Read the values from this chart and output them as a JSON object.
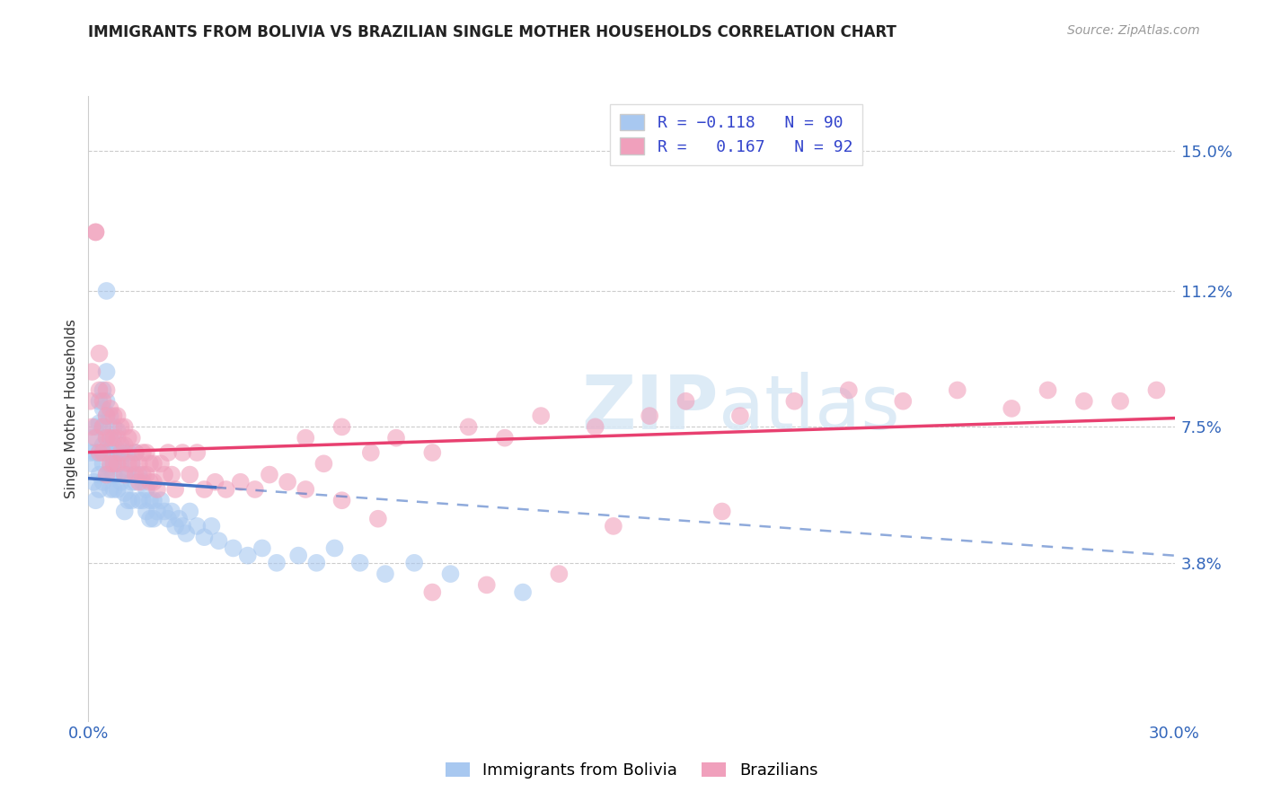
{
  "title": "IMMIGRANTS FROM BOLIVIA VS BRAZILIAN SINGLE MOTHER HOUSEHOLDS CORRELATION CHART",
  "source": "Source: ZipAtlas.com",
  "ylabel": "Single Mother Households",
  "ytick_labels": [
    "15.0%",
    "11.2%",
    "7.5%",
    "3.8%"
  ],
  "ytick_values": [
    0.15,
    0.112,
    0.075,
    0.038
  ],
  "xmin": 0.0,
  "xmax": 0.3,
  "ymin": -0.005,
  "ymax": 0.165,
  "bolivia_R": -0.118,
  "bolivia_N": 90,
  "brazil_R": 0.167,
  "brazil_N": 92,
  "bolivia_color": "#A8C8F0",
  "brazil_color": "#F0A0BC",
  "watermark": "ZIPatlas",
  "legend_label_1": "Immigrants from Bolivia",
  "legend_label_2": "Brazilians",
  "bolivia_x": [
    0.0005,
    0.001,
    0.001,
    0.0015,
    0.002,
    0.002,
    0.002,
    0.003,
    0.003,
    0.003,
    0.003,
    0.003,
    0.004,
    0.004,
    0.004,
    0.004,
    0.004,
    0.004,
    0.005,
    0.005,
    0.005,
    0.005,
    0.005,
    0.005,
    0.005,
    0.006,
    0.006,
    0.006,
    0.006,
    0.006,
    0.007,
    0.007,
    0.007,
    0.007,
    0.007,
    0.008,
    0.008,
    0.008,
    0.008,
    0.009,
    0.009,
    0.009,
    0.01,
    0.01,
    0.01,
    0.01,
    0.011,
    0.011,
    0.011,
    0.012,
    0.012,
    0.012,
    0.013,
    0.013,
    0.014,
    0.014,
    0.015,
    0.015,
    0.016,
    0.016,
    0.017,
    0.017,
    0.018,
    0.018,
    0.019,
    0.02,
    0.021,
    0.022,
    0.023,
    0.024,
    0.025,
    0.026,
    0.027,
    0.028,
    0.03,
    0.032,
    0.034,
    0.036,
    0.04,
    0.044,
    0.048,
    0.052,
    0.058,
    0.063,
    0.068,
    0.075,
    0.082,
    0.09,
    0.1,
    0.12
  ],
  "bolivia_y": [
    0.068,
    0.072,
    0.065,
    0.06,
    0.075,
    0.068,
    0.055,
    0.082,
    0.076,
    0.068,
    0.062,
    0.058,
    0.085,
    0.08,
    0.075,
    0.07,
    0.065,
    0.06,
    0.112,
    0.09,
    0.082,
    0.078,
    0.072,
    0.068,
    0.062,
    0.078,
    0.072,
    0.068,
    0.064,
    0.058,
    0.075,
    0.07,
    0.065,
    0.062,
    0.058,
    0.074,
    0.068,
    0.065,
    0.058,
    0.07,
    0.065,
    0.06,
    0.068,
    0.062,
    0.057,
    0.052,
    0.068,
    0.062,
    0.055,
    0.065,
    0.06,
    0.055,
    0.068,
    0.06,
    0.062,
    0.055,
    0.06,
    0.055,
    0.058,
    0.052,
    0.055,
    0.05,
    0.055,
    0.05,
    0.052,
    0.055,
    0.052,
    0.05,
    0.052,
    0.048,
    0.05,
    0.048,
    0.046,
    0.052,
    0.048,
    0.045,
    0.048,
    0.044,
    0.042,
    0.04,
    0.042,
    0.038,
    0.04,
    0.038,
    0.042,
    0.038,
    0.035,
    0.038,
    0.035,
    0.03
  ],
  "brazil_x": [
    0.0005,
    0.001,
    0.001,
    0.002,
    0.002,
    0.002,
    0.003,
    0.003,
    0.003,
    0.004,
    0.004,
    0.004,
    0.005,
    0.005,
    0.005,
    0.005,
    0.006,
    0.006,
    0.006,
    0.007,
    0.007,
    0.007,
    0.008,
    0.008,
    0.008,
    0.009,
    0.009,
    0.01,
    0.01,
    0.01,
    0.011,
    0.011,
    0.012,
    0.012,
    0.013,
    0.013,
    0.014,
    0.014,
    0.015,
    0.015,
    0.016,
    0.016,
    0.017,
    0.017,
    0.018,
    0.018,
    0.019,
    0.02,
    0.021,
    0.022,
    0.023,
    0.024,
    0.026,
    0.028,
    0.03,
    0.032,
    0.035,
    0.038,
    0.042,
    0.046,
    0.05,
    0.055,
    0.06,
    0.065,
    0.07,
    0.078,
    0.085,
    0.095,
    0.105,
    0.115,
    0.125,
    0.14,
    0.155,
    0.165,
    0.18,
    0.195,
    0.21,
    0.225,
    0.24,
    0.255,
    0.265,
    0.275,
    0.285,
    0.295,
    0.175,
    0.145,
    0.13,
    0.11,
    0.095,
    0.08,
    0.07,
    0.06
  ],
  "brazil_y": [
    0.082,
    0.09,
    0.075,
    0.128,
    0.128,
    0.072,
    0.095,
    0.085,
    0.068,
    0.082,
    0.075,
    0.068,
    0.085,
    0.078,
    0.072,
    0.062,
    0.08,
    0.072,
    0.065,
    0.078,
    0.072,
    0.065,
    0.078,
    0.072,
    0.065,
    0.075,
    0.068,
    0.075,
    0.07,
    0.062,
    0.072,
    0.065,
    0.072,
    0.065,
    0.068,
    0.062,
    0.065,
    0.06,
    0.068,
    0.062,
    0.068,
    0.062,
    0.065,
    0.06,
    0.065,
    0.06,
    0.058,
    0.065,
    0.062,
    0.068,
    0.062,
    0.058,
    0.068,
    0.062,
    0.068,
    0.058,
    0.06,
    0.058,
    0.06,
    0.058,
    0.062,
    0.06,
    0.072,
    0.065,
    0.075,
    0.068,
    0.072,
    0.068,
    0.075,
    0.072,
    0.078,
    0.075,
    0.078,
    0.082,
    0.078,
    0.082,
    0.085,
    0.082,
    0.085,
    0.08,
    0.085,
    0.082,
    0.082,
    0.085,
    0.052,
    0.048,
    0.035,
    0.032,
    0.03,
    0.05,
    0.055,
    0.058
  ]
}
